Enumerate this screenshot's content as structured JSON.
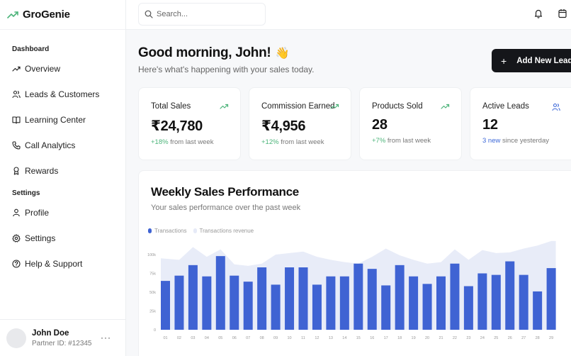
{
  "app": {
    "name": "GroGenie",
    "logo_icon": "trending-up-icon",
    "brand_color": "#4cb47a"
  },
  "sidebar": {
    "sections": [
      {
        "label": "Dashboard",
        "items": [
          {
            "label": "Overview",
            "icon": "trending-up-icon"
          },
          {
            "label": "Leads & Customers",
            "icon": "users-icon"
          },
          {
            "label": "Learning Center",
            "icon": "book-open-icon"
          },
          {
            "label": "Call Analytics",
            "icon": "phone-icon"
          },
          {
            "label": "Rewards",
            "icon": "award-icon"
          }
        ]
      },
      {
        "label": "Settings",
        "items": [
          {
            "label": "Profile",
            "icon": "user-icon"
          },
          {
            "label": "Settings",
            "icon": "gear-icon"
          },
          {
            "label": "Help & Support",
            "icon": "help-circle-icon"
          }
        ]
      }
    ],
    "user": {
      "name": "John Doe",
      "partner_id": "Partner ID: #12345",
      "more_label": "···"
    }
  },
  "topbar": {
    "search_placeholder": "Search...",
    "icons": [
      "bell-icon",
      "calendar-icon"
    ]
  },
  "greeting": {
    "title": "Good morning, John!",
    "emoji": "👋",
    "subtitle": "Here's what's happening with your sales today."
  },
  "actions": {
    "add_lead_label": "Add New Lead",
    "add_lead_icon": "+"
  },
  "stats": [
    {
      "title": "Total Sales",
      "value": "₹24,780",
      "delta": "+18%",
      "delta_text": " from last week",
      "icon": "trending-up-icon",
      "delta_color": "#4cb47a"
    },
    {
      "title": "Commission Earned",
      "value": "₹4,956",
      "delta": "+12%",
      "delta_text": " from last week",
      "icon": "trending-up-icon",
      "delta_color": "#4cb47a"
    },
    {
      "title": "Products Sold",
      "value": "28",
      "delta": "+7%",
      "delta_text": " from last week",
      "icon": "trending-up-icon",
      "delta_color": "#4cb47a"
    },
    {
      "title": "Active Leads",
      "value": "12",
      "delta": "3 new",
      "delta_text": " since yesterday",
      "icon": "users-icon",
      "delta_color": "#3d68d8"
    }
  ],
  "chart": {
    "title": "Weekly Sales Performance",
    "subtitle": "Your sales performance over the past week",
    "legend": [
      {
        "label": "Transactions",
        "color": "#3f63d3"
      },
      {
        "label": "Transactions revenue",
        "color": "#e6eaf7"
      }
    ]
  },
  "chart_data": {
    "type": "bar",
    "title": "Weekly Sales Performance",
    "subtitle": "Your sales performance over the past week",
    "xlabel": "",
    "ylabel": "",
    "ylim": [
      0,
      100000
    ],
    "yticks": [
      "0",
      "25k",
      "50k",
      "75k",
      "100k"
    ],
    "legend_position": "top-left",
    "categories": [
      "01",
      "02",
      "03",
      "04",
      "05",
      "06",
      "07",
      "08",
      "09",
      "10",
      "11",
      "12",
      "13",
      "14",
      "15",
      "16",
      "17",
      "18",
      "19",
      "20",
      "21",
      "22",
      "23",
      "24",
      "25",
      "26",
      "27",
      "28",
      "29"
    ],
    "series": [
      {
        "name": "Transactions",
        "type": "bar",
        "color": "#3f63d3",
        "values": [
          65000,
          72000,
          86000,
          71000,
          98000,
          72000,
          64000,
          83000,
          60000,
          83000,
          83000,
          60000,
          71000,
          71000,
          88000,
          81000,
          59000,
          86000,
          71000,
          61000,
          71000,
          88000,
          58000,
          75000,
          73000,
          91000,
          73000,
          51000,
          82000
        ]
      },
      {
        "name": "Transactions revenue",
        "type": "area",
        "color": "#e8ecf8",
        "values": [
          95000,
          93000,
          110000,
          97000,
          107000,
          87000,
          85000,
          88000,
          100000,
          102000,
          104000,
          97000,
          93000,
          90000,
          88000,
          97000,
          108000,
          99000,
          93000,
          88000,
          90000,
          107000,
          93000,
          106000,
          102000,
          103000,
          108000,
          112000,
          118000
        ]
      }
    ]
  }
}
